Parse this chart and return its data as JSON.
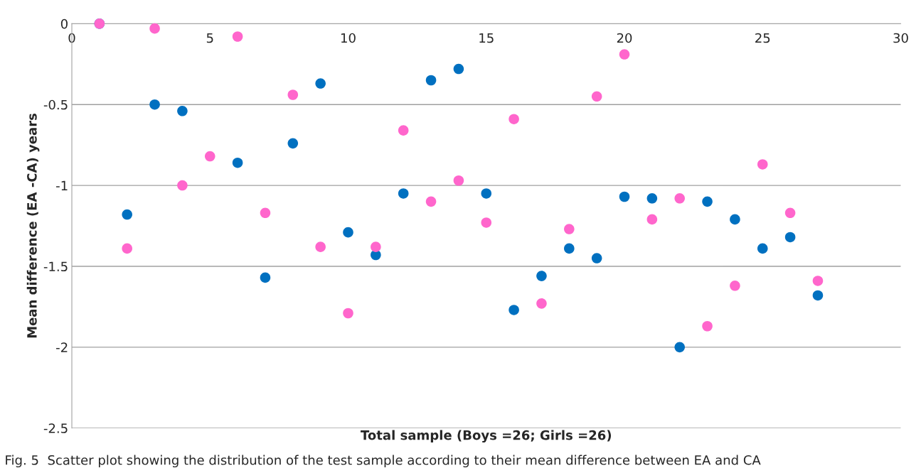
{
  "chart_data": {
    "type": "scatter",
    "xlabel": "Total sample (Boys =26; Girls =26)",
    "ylabel": "Mean difference (EA -CA) years",
    "annotations": [
      "Fig. 5  Scatter plot showing the distribution of the test sample according to their mean difference between EA and CA"
    ],
    "xlim": [
      0,
      30
    ],
    "ylim": [
      -2.5,
      0
    ],
    "xticks": [
      0,
      5,
      10,
      15,
      20,
      25,
      30
    ],
    "yticks": [
      0,
      -0.5,
      -1,
      -1.5,
      -2,
      -2.5
    ],
    "grid": "y",
    "marker": "circle",
    "series": [
      {
        "color": "#0070c0",
        "x": [
          1,
          2,
          3,
          4,
          5,
          6,
          7,
          8,
          9,
          10,
          11,
          12,
          13,
          14,
          15,
          16,
          17,
          18,
          19,
          20,
          21,
          22,
          23,
          24,
          25,
          26,
          27
        ],
        "values": [
          0,
          -1.18,
          -0.5,
          -0.54,
          null,
          -0.86,
          -1.57,
          -0.74,
          -0.37,
          -1.29,
          -1.43,
          -1.05,
          -0.35,
          -0.28,
          -1.05,
          -1.77,
          -1.56,
          -1.39,
          -1.45,
          -1.07,
          -1.08,
          -2.0,
          -1.1,
          -1.21,
          -1.39,
          -1.32,
          -1.68
        ]
      },
      {
        "color": "#ff66cc",
        "x": [
          1,
          2,
          3,
          4,
          5,
          6,
          7,
          8,
          9,
          10,
          11,
          12,
          13,
          14,
          15,
          16,
          17,
          18,
          19,
          20,
          21,
          22,
          23,
          24,
          25,
          26,
          27
        ],
        "values": [
          0,
          -1.39,
          -0.03,
          -1.0,
          -0.82,
          -0.08,
          -1.17,
          -0.44,
          -1.38,
          -1.79,
          -1.38,
          -0.66,
          -1.1,
          -0.97,
          -1.23,
          -0.59,
          -1.73,
          -1.27,
          -0.45,
          -0.19,
          -1.21,
          -1.08,
          -1.87,
          -1.62,
          -0.87,
          -1.17,
          -1.59
        ]
      }
    ]
  }
}
